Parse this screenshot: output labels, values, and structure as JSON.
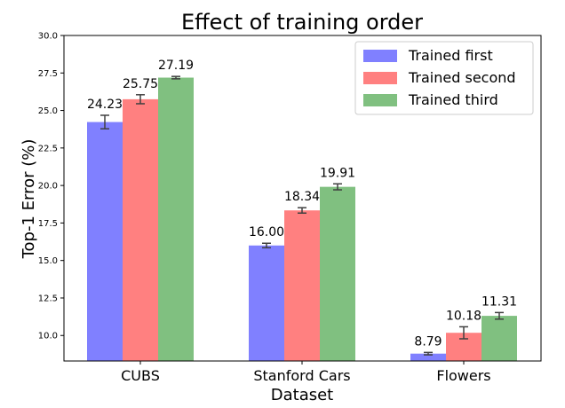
{
  "chart_data": {
    "type": "bar",
    "title": "Effect of training order",
    "xlabel": "Dataset",
    "ylabel": "Top-1 Error (%)",
    "categories": [
      "CUBS",
      "Stanford Cars",
      "Flowers"
    ],
    "ylim": [
      8.3,
      30.0
    ],
    "yticks": [
      "10.0",
      "12.5",
      "15.0",
      "17.5",
      "20.0",
      "22.5",
      "25.0",
      "27.5",
      "30.0"
    ],
    "legend_position": "top-right",
    "grid": false,
    "series": [
      {
        "name": "Trained first",
        "color": "#8080ff",
        "values": [
          24.23,
          16.0,
          8.79
        ],
        "errors": [
          0.45,
          0.15,
          0.08
        ],
        "labels": [
          "24.23",
          "16.00",
          "8.79"
        ]
      },
      {
        "name": "Trained second",
        "color": "#ff8080",
        "values": [
          25.75,
          18.34,
          10.18
        ],
        "errors": [
          0.3,
          0.18,
          0.4
        ],
        "labels": [
          "25.75",
          "18.34",
          "10.18"
        ]
      },
      {
        "name": "Trained third",
        "color": "#80c080",
        "values": [
          27.19,
          19.91,
          11.31
        ],
        "errors": [
          0.08,
          0.2,
          0.22
        ],
        "labels": [
          "27.19",
          "19.91",
          "11.31"
        ]
      }
    ]
  }
}
